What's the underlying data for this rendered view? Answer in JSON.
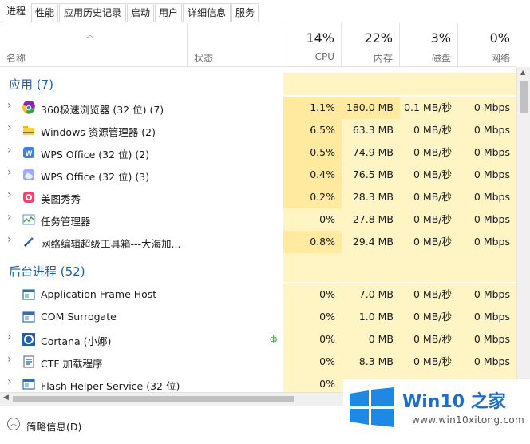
{
  "tabs": [
    "进程",
    "性能",
    "应用历史记录",
    "启动",
    "用户",
    "详细信息",
    "服务"
  ],
  "columns": {
    "name": "名称",
    "status": "状态",
    "cpu": {
      "pct": "14%",
      "label": "CPU"
    },
    "mem": {
      "pct": "22%",
      "label": "内存"
    },
    "disk": {
      "pct": "3%",
      "label": "磁盘"
    },
    "net": {
      "pct": "0%",
      "label": "网络"
    }
  },
  "groups": {
    "apps": "应用 (7)",
    "background": "后台进程 (52)"
  },
  "apps": [
    {
      "name": "360极速浏览器 (32 位) (7)",
      "cpu": "1.1%",
      "mem": "180.0 MB",
      "disk": "0.1 MB/秒",
      "net": "0 Mbps",
      "icon": "chrome-360-icon"
    },
    {
      "name": "Windows 资源管理器 (2)",
      "cpu": "6.5%",
      "mem": "63.3 MB",
      "disk": "0 MB/秒",
      "net": "0 Mbps",
      "icon": "folder-icon"
    },
    {
      "name": "WPS Office (32 位) (2)",
      "cpu": "0.5%",
      "mem": "74.9 MB",
      "disk": "0 MB/秒",
      "net": "0 Mbps",
      "icon": "wps-w-icon"
    },
    {
      "name": "WPS Office (32 位) (3)",
      "cpu": "0.4%",
      "mem": "76.5 MB",
      "disk": "0 MB/秒",
      "net": "0 Mbps",
      "icon": "wps-cloud-icon"
    },
    {
      "name": "美图秀秀",
      "cpu": "0.2%",
      "mem": "28.3 MB",
      "disk": "0 MB/秒",
      "net": "0 Mbps",
      "icon": "meitu-icon"
    },
    {
      "name": "任务管理器",
      "cpu": "0%",
      "mem": "27.8 MB",
      "disk": "0 MB/秒",
      "net": "0 Mbps",
      "icon": "task-manager-icon"
    },
    {
      "name": "网络编辑超级工具箱---大海加...",
      "cpu": "0.8%",
      "mem": "29.4 MB",
      "disk": "0 MB/秒",
      "net": "0 Mbps",
      "icon": "pen-icon"
    }
  ],
  "background": [
    {
      "name": "Application Frame Host",
      "cpu": "0%",
      "mem": "7.0 MB",
      "disk": "0 MB/秒",
      "net": "0 Mbps",
      "icon": "window-icon"
    },
    {
      "name": "COM Surrogate",
      "cpu": "0%",
      "mem": "1.0 MB",
      "disk": "0 MB/秒",
      "net": "0 Mbps",
      "icon": "window-icon"
    },
    {
      "name": "Cortana (小娜)",
      "cpu": "0%",
      "mem": "0 MB",
      "disk": "0 MB/秒",
      "net": "0 Mbps",
      "icon": "cortana-icon"
    },
    {
      "name": "CTF 加载程序",
      "cpu": "0%",
      "mem": "8.3 MB",
      "disk": "0 MB/秒",
      "net": "0 Mbps",
      "icon": "ctf-icon"
    },
    {
      "name": "Flash Helper Service (32 位)",
      "cpu": "0%",
      "mem": "",
      "disk": "",
      "net": "",
      "icon": "window-icon"
    }
  ],
  "footer": {
    "label": "简略信息(D)"
  },
  "watermark": {
    "brand": "Win10 之家",
    "url": "www.win10xitong.com"
  },
  "colors": {
    "heat_light": "#fff4c4",
    "heat_mid": "#ffeaa0",
    "heat_hot": "#fde393",
    "group": "#1b5fb0"
  }
}
